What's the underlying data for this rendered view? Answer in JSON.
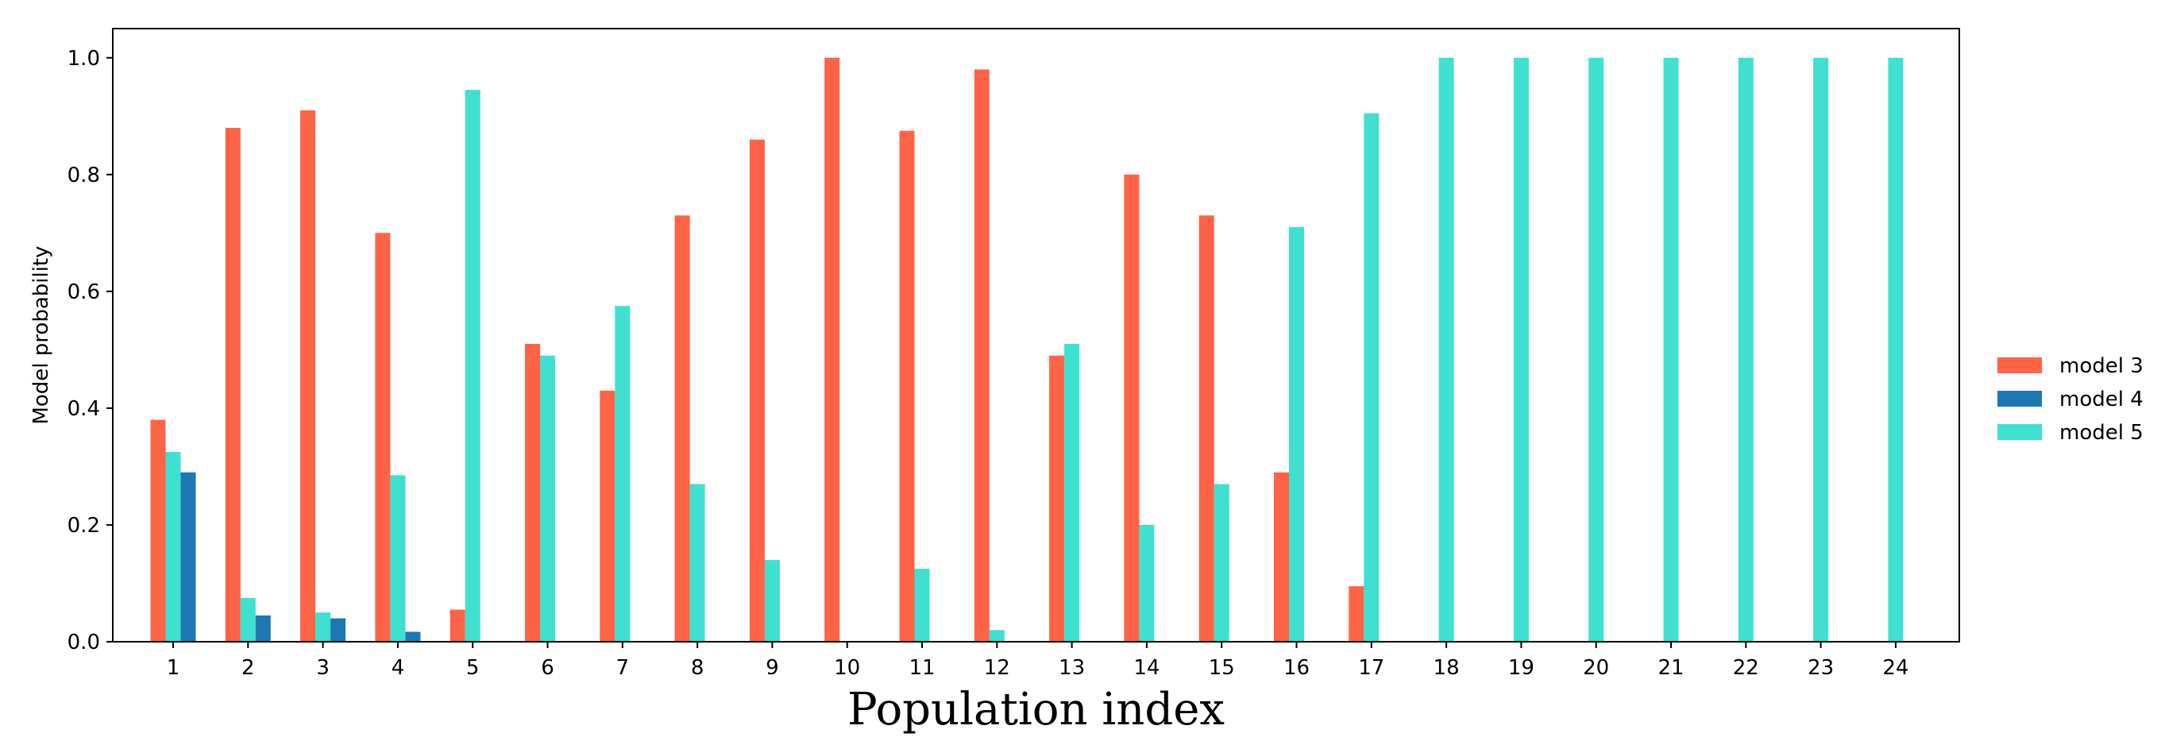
{
  "chart_data": {
    "type": "bar",
    "xlabel": "Population index",
    "ylabel": "Model probability",
    "ylim": [
      0,
      1.05
    ],
    "yticks": [
      "0.0",
      "0.2",
      "0.4",
      "0.6",
      "0.8",
      "1.0"
    ],
    "categories": [
      "1",
      "2",
      "3",
      "4",
      "5",
      "6",
      "7",
      "8",
      "9",
      "10",
      "11",
      "12",
      "13",
      "14",
      "15",
      "16",
      "17",
      "18",
      "19",
      "20",
      "21",
      "22",
      "23",
      "24"
    ],
    "legend_position": "right",
    "grid": false,
    "bar_order": [
      "model 3",
      "model 5",
      "model 4"
    ],
    "series": [
      {
        "name": "model 3",
        "color": "#ff6347",
        "values": [
          0.38,
          0.88,
          0.91,
          0.7,
          0.055,
          0.51,
          0.43,
          0.73,
          0.86,
          1.0,
          0.875,
          0.98,
          0.49,
          0.8,
          0.73,
          0.29,
          0.095,
          0,
          0,
          0,
          0,
          0,
          0,
          0
        ]
      },
      {
        "name": "model 4",
        "color": "#1f77b4",
        "values": [
          0.29,
          0.045,
          0.04,
          0.017,
          0,
          0,
          0,
          0,
          0,
          0,
          0,
          0,
          0,
          0,
          0,
          0,
          0,
          0,
          0,
          0,
          0,
          0,
          0,
          0
        ]
      },
      {
        "name": "model 5",
        "color": "#40e0d0",
        "values": [
          0.325,
          0.075,
          0.05,
          0.285,
          0.945,
          0.49,
          0.575,
          0.27,
          0.14,
          0,
          0.125,
          0.02,
          0.51,
          0.2,
          0.27,
          0.71,
          0.905,
          1.0,
          1.0,
          1.0,
          1.0,
          1.0,
          1.0,
          1.0
        ]
      }
    ]
  }
}
